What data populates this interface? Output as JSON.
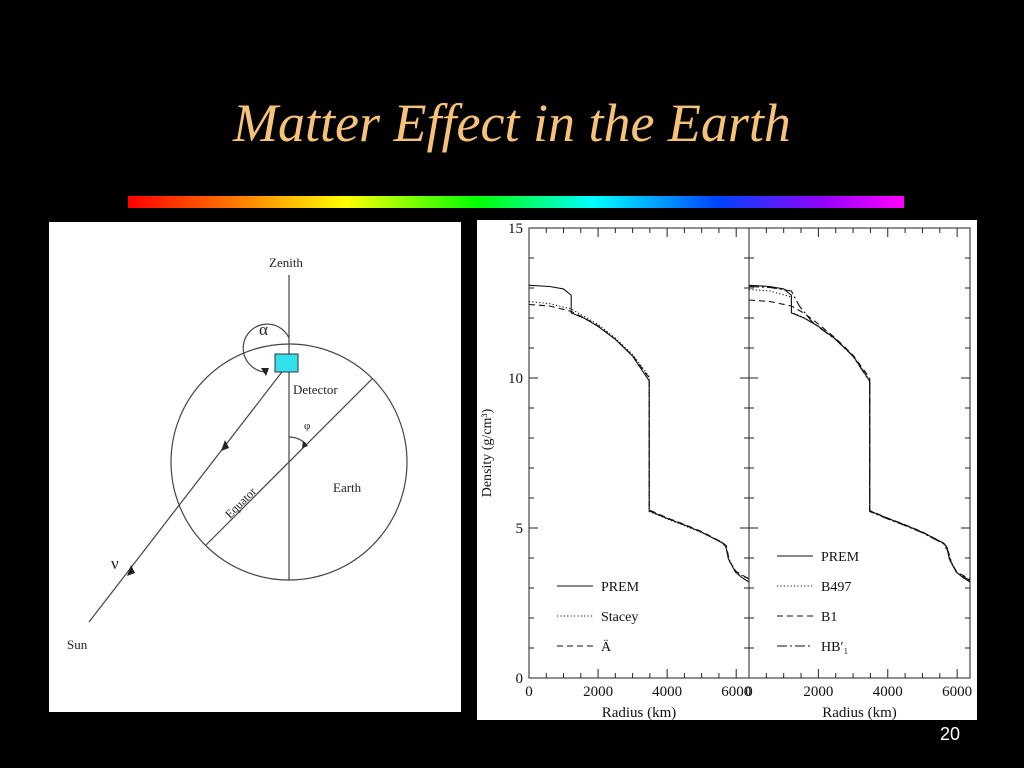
{
  "slide": {
    "title": "Matter Effect in the Earth",
    "page_number": "20"
  },
  "diagram": {
    "zenith": "Zenith",
    "alpha": "α",
    "detector": "Detector",
    "phi": "φ",
    "earth": "Earth",
    "equator": "Equator",
    "nu": "ν",
    "sun": "Sun",
    "detector_color": "#33e0ee"
  },
  "chart_data": [
    {
      "type": "line",
      "xlabel": "Radius (km)",
      "ylabel": "Density (g/cm³)",
      "xlim": [
        0,
        6371
      ],
      "ylim": [
        0,
        15
      ],
      "xticks": [
        "0",
        "2000",
        "4000",
        "6000"
      ],
      "yticks": [
        "0",
        "5",
        "10",
        "15"
      ],
      "legend_position": "bottom-left",
      "series": [
        {
          "name": "PREM",
          "style": "solid",
          "points": [
            [
              0,
              13.09
            ],
            [
              600,
              13.05
            ],
            [
              1000,
              12.97
            ],
            [
              1221,
              12.76
            ],
            [
              1221,
              12.17
            ],
            [
              1600,
              11.99
            ],
            [
              2000,
              11.72
            ],
            [
              2500,
              11.29
            ],
            [
              3000,
              10.73
            ],
            [
              3480,
              9.9
            ],
            [
              3480,
              5.57
            ],
            [
              4000,
              5.32
            ],
            [
              4500,
              5.1
            ],
            [
              5000,
              4.86
            ],
            [
              5600,
              4.5
            ],
            [
              5701,
              4.38
            ],
            [
              5771,
              3.98
            ],
            [
              5971,
              3.54
            ],
            [
              6151,
              3.36
            ],
            [
              6371,
              3.2
            ]
          ]
        },
        {
          "name": "Stacey",
          "style": "dotted",
          "points": [
            [
              0,
              12.55
            ],
            [
              600,
              12.48
            ],
            [
              1221,
              12.3
            ],
            [
              1600,
              12.05
            ],
            [
              2000,
              11.78
            ],
            [
              2500,
              11.33
            ],
            [
              3000,
              10.78
            ],
            [
              3480,
              10.05
            ],
            [
              3480,
              5.55
            ],
            [
              4000,
              5.3
            ],
            [
              4500,
              5.08
            ],
            [
              5000,
              4.85
            ],
            [
              5600,
              4.52
            ],
            [
              5700,
              4.35
            ],
            [
              5800,
              3.95
            ],
            [
              6000,
              3.5
            ],
            [
              6371,
              3.3
            ]
          ]
        },
        {
          "name": "Ä",
          "style": "dashed",
          "points": [
            [
              0,
              12.45
            ],
            [
              600,
              12.4
            ],
            [
              1221,
              12.22
            ],
            [
              1600,
              12.0
            ],
            [
              2000,
              11.74
            ],
            [
              2500,
              11.3
            ],
            [
              3000,
              10.75
            ],
            [
              3480,
              10.0
            ],
            [
              3480,
              5.6
            ],
            [
              4000,
              5.34
            ],
            [
              4500,
              5.12
            ],
            [
              5000,
              4.88
            ],
            [
              5600,
              4.52
            ],
            [
              5720,
              4.4
            ],
            [
              5800,
              3.9
            ],
            [
              6000,
              3.55
            ],
            [
              6371,
              3.3
            ]
          ]
        }
      ]
    },
    {
      "type": "line",
      "xlabel": "Radius (km)",
      "xlim": [
        0,
        6371
      ],
      "ylim": [
        0,
        15
      ],
      "xticks": [
        "0",
        "2000",
        "4000",
        "6000"
      ],
      "legend_position": "bottom-left",
      "series": [
        {
          "name": "PREM",
          "style": "solid",
          "points": [
            [
              0,
              13.09
            ],
            [
              600,
              13.05
            ],
            [
              1000,
              12.97
            ],
            [
              1221,
              12.76
            ],
            [
              1221,
              12.17
            ],
            [
              1600,
              11.99
            ],
            [
              2000,
              11.72
            ],
            [
              2500,
              11.29
            ],
            [
              3000,
              10.73
            ],
            [
              3480,
              9.9
            ],
            [
              3480,
              5.57
            ],
            [
              4000,
              5.32
            ],
            [
              4500,
              5.1
            ],
            [
              5000,
              4.86
            ],
            [
              5600,
              4.5
            ],
            [
              5701,
              4.38
            ],
            [
              5771,
              3.98
            ],
            [
              5971,
              3.54
            ],
            [
              6151,
              3.36
            ],
            [
              6371,
              3.2
            ]
          ]
        },
        {
          "name": "B497",
          "style": "dotted",
          "points": [
            [
              0,
              12.95
            ],
            [
              600,
              12.9
            ],
            [
              1221,
              12.7
            ],
            [
              1221,
              12.2
            ],
            [
              1600,
              12.0
            ],
            [
              2000,
              11.73
            ],
            [
              2500,
              11.3
            ],
            [
              3000,
              10.74
            ],
            [
              3480,
              9.92
            ],
            [
              3480,
              5.56
            ],
            [
              4000,
              5.31
            ],
            [
              4500,
              5.09
            ],
            [
              5000,
              4.85
            ],
            [
              5600,
              4.5
            ],
            [
              5700,
              4.35
            ],
            [
              5800,
              3.95
            ],
            [
              6000,
              3.5
            ],
            [
              6371,
              3.25
            ]
          ]
        },
        {
          "name": "B1",
          "style": "dashed",
          "points": [
            [
              0,
              12.6
            ],
            [
              600,
              12.55
            ],
            [
              1221,
              12.4
            ],
            [
              1600,
              12.15
            ],
            [
              2000,
              11.8
            ],
            [
              2500,
              11.32
            ],
            [
              3000,
              10.76
            ],
            [
              3480,
              10.0
            ],
            [
              3480,
              5.58
            ],
            [
              4000,
              5.33
            ],
            [
              4500,
              5.11
            ],
            [
              5000,
              4.87
            ],
            [
              5600,
              4.5
            ],
            [
              5700,
              4.4
            ],
            [
              5800,
              3.9
            ],
            [
              6000,
              3.52
            ],
            [
              6371,
              3.3
            ]
          ]
        },
        {
          "name": "HB′₁",
          "style": "dashdot",
          "points": [
            [
              0,
              13.05
            ],
            [
              600,
              13.02
            ],
            [
              1221,
              12.9
            ],
            [
              1450,
              12.4
            ],
            [
              1800,
              11.9
            ],
            [
              2000,
              11.7
            ],
            [
              2500,
              11.28
            ],
            [
              3000,
              10.72
            ],
            [
              3480,
              9.88
            ],
            [
              3480,
              5.55
            ],
            [
              4000,
              5.3
            ],
            [
              4500,
              5.08
            ],
            [
              5000,
              4.84
            ],
            [
              5600,
              4.48
            ],
            [
              5750,
              4.2
            ],
            [
              5850,
              3.8
            ],
            [
              6000,
              3.5
            ],
            [
              6371,
              3.25
            ]
          ]
        }
      ]
    }
  ]
}
